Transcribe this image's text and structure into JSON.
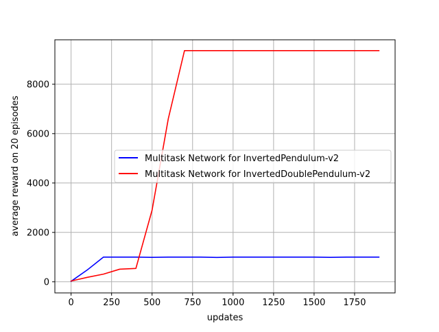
{
  "chart_data": {
    "type": "line",
    "title": "",
    "xlabel": "updates",
    "ylabel": "average reward on 20 episodes",
    "xlim": [
      -100,
      2000
    ],
    "ylim": [
      -450,
      9800
    ],
    "xticks": [
      0,
      250,
      500,
      750,
      1000,
      1250,
      1500,
      1750
    ],
    "yticks": [
      0,
      2000,
      4000,
      6000,
      8000
    ],
    "grid": true,
    "legend_position": "center-right",
    "series": [
      {
        "name": "Multitask Network for InvertedPendulum-v2",
        "color": "#0000ff",
        "x": [
          0,
          100,
          200,
          300,
          400,
          500,
          600,
          700,
          800,
          900,
          1000,
          1100,
          1200,
          1300,
          1400,
          1500,
          1600,
          1700,
          1800,
          1900
        ],
        "y": [
          20,
          480,
          1000,
          1000,
          1000,
          990,
          1000,
          1000,
          1000,
          985,
          1000,
          1000,
          1000,
          1000,
          1000,
          1000,
          990,
          1000,
          1000,
          1000
        ]
      },
      {
        "name": "Multitask Network for InvertedDoublePendulum-v2",
        "color": "#ff0000",
        "x": [
          0,
          100,
          200,
          300,
          400,
          500,
          600,
          700,
          800,
          900,
          1000,
          1100,
          1200,
          1300,
          1400,
          1500,
          1600,
          1700,
          1800,
          1900
        ],
        "y": [
          30,
          180,
          310,
          510,
          540,
          2900,
          6600,
          9360,
          9360,
          9360,
          9360,
          9360,
          9360,
          9360,
          9360,
          9360,
          9360,
          9360,
          9360,
          9360
        ]
      }
    ]
  }
}
